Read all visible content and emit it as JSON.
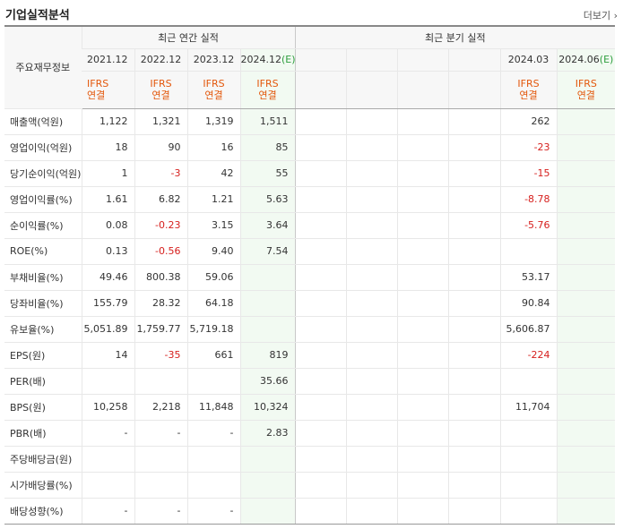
{
  "title": "기업실적분석",
  "more_label": "더보기",
  "more_icon": "chevron-right-icon",
  "groups": {
    "annual": "최근 연간 실적",
    "quarterly": "최근 분기 실적"
  },
  "row_header": "주요재무정보",
  "periods": {
    "annual": [
      "2021.12",
      "2022.12",
      "2023.12",
      "2024.12"
    ],
    "annual_est_mark": "(E)",
    "quarterly": [
      "",
      "",
      "",
      "",
      "2024.03",
      "2024.06"
    ],
    "quarterly_est_mark": "(E)"
  },
  "ifrs_label": [
    "IFRS",
    "연결"
  ],
  "rows": [
    {
      "label": "매출액(억원)",
      "annual": [
        "1,122",
        "1,321",
        "1,319",
        "1,511"
      ],
      "quarterly": [
        "",
        "",
        "",
        "",
        "262",
        ""
      ]
    },
    {
      "label": "영업이익(억원)",
      "annual": [
        "18",
        "90",
        "16",
        "85"
      ],
      "quarterly": [
        "",
        "",
        "",
        "",
        "-23",
        ""
      ]
    },
    {
      "label": "당기순이익(억원)",
      "annual": [
        "1",
        "-3",
        "42",
        "55"
      ],
      "quarterly": [
        "",
        "",
        "",
        "",
        "-15",
        ""
      ]
    },
    {
      "label": "영업이익률(%)",
      "annual": [
        "1.61",
        "6.82",
        "1.21",
        "5.63"
      ],
      "quarterly": [
        "",
        "",
        "",
        "",
        "-8.78",
        ""
      ]
    },
    {
      "label": "순이익률(%)",
      "annual": [
        "0.08",
        "-0.23",
        "3.15",
        "3.64"
      ],
      "quarterly": [
        "",
        "",
        "",
        "",
        "-5.76",
        ""
      ]
    },
    {
      "label": "ROE(%)",
      "annual": [
        "0.13",
        "-0.56",
        "9.40",
        "7.54"
      ],
      "quarterly": [
        "",
        "",
        "",
        "",
        "",
        ""
      ]
    },
    {
      "label": "부채비율(%)",
      "annual": [
        "49.46",
        "800.38",
        "59.06",
        ""
      ],
      "quarterly": [
        "",
        "",
        "",
        "",
        "53.17",
        ""
      ]
    },
    {
      "label": "당좌비율(%)",
      "annual": [
        "155.79",
        "28.32",
        "64.18",
        ""
      ],
      "quarterly": [
        "",
        "",
        "",
        "",
        "90.84",
        ""
      ]
    },
    {
      "label": "유보율(%)",
      "annual": [
        "5,051.89",
        "1,759.77",
        "5,719.18",
        ""
      ],
      "quarterly": [
        "",
        "",
        "",
        "",
        "5,606.87",
        ""
      ]
    },
    {
      "label": "EPS(원)",
      "annual": [
        "14",
        "-35",
        "661",
        "819"
      ],
      "quarterly": [
        "",
        "",
        "",
        "",
        "-224",
        ""
      ]
    },
    {
      "label": "PER(배)",
      "annual": [
        "",
        "",
        "",
        "35.66"
      ],
      "quarterly": [
        "",
        "",
        "",
        "",
        "",
        ""
      ]
    },
    {
      "label": "BPS(원)",
      "annual": [
        "10,258",
        "2,218",
        "11,848",
        "10,324"
      ],
      "quarterly": [
        "",
        "",
        "",
        "",
        "11,704",
        ""
      ]
    },
    {
      "label": "PBR(배)",
      "annual": [
        "-",
        "-",
        "-",
        "2.83"
      ],
      "quarterly": [
        "",
        "",
        "",
        "",
        "",
        ""
      ]
    },
    {
      "label": "주당배당금(원)",
      "annual": [
        "",
        "",
        "",
        ""
      ],
      "quarterly": [
        "",
        "",
        "",
        "",
        "",
        ""
      ]
    },
    {
      "label": "시가배당률(%)",
      "annual": [
        "",
        "",
        "",
        ""
      ],
      "quarterly": [
        "",
        "",
        "",
        "",
        "",
        ""
      ]
    },
    {
      "label": "배당성향(%)",
      "annual": [
        "-",
        "-",
        "-",
        ""
      ],
      "quarterly": [
        "",
        "",
        "",
        "",
        "",
        ""
      ]
    }
  ],
  "section_breaks": [
    3,
    6,
    9,
    13
  ],
  "colors": {
    "negative": "#d6201e",
    "ifrs": "#e3570b",
    "estimate_bg": "#f2faf2",
    "estimate_mark": "#2e9e3e"
  }
}
